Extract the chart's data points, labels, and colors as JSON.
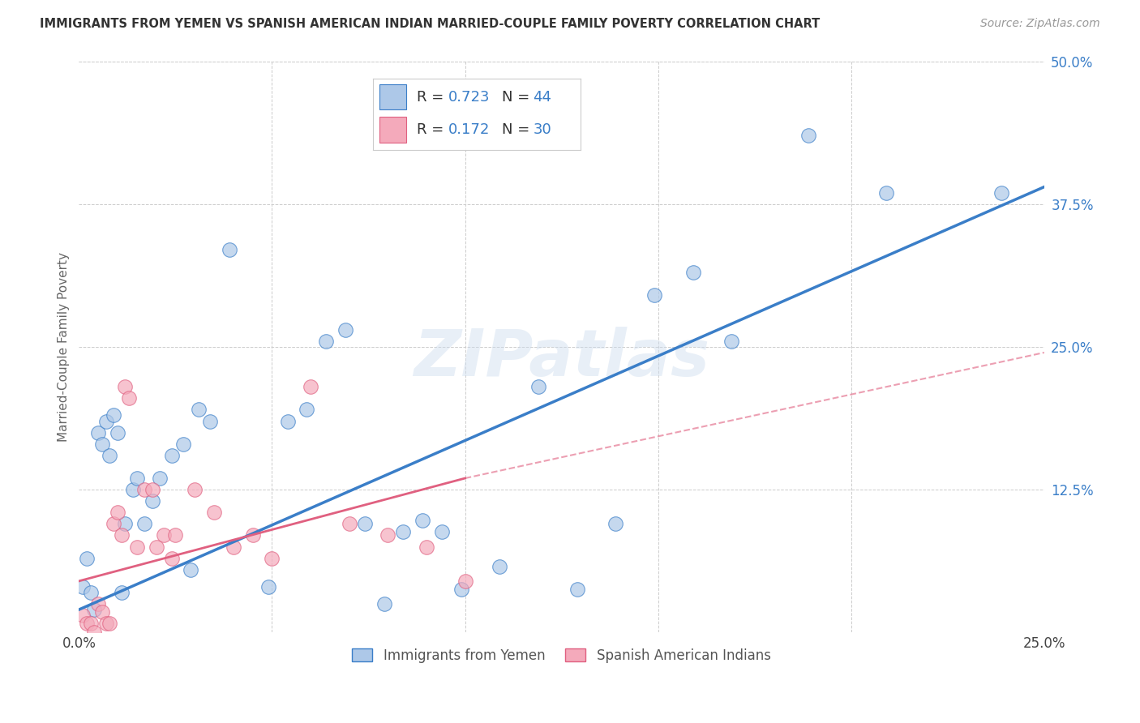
{
  "title": "IMMIGRANTS FROM YEMEN VS SPANISH AMERICAN INDIAN MARRIED-COUPLE FAMILY POVERTY CORRELATION CHART",
  "source": "Source: ZipAtlas.com",
  "ylabel": "Married-Couple Family Poverty",
  "xlim": [
    0.0,
    0.25
  ],
  "ylim": [
    0.0,
    0.5
  ],
  "ytick_labels": [
    "12.5%",
    "25.0%",
    "37.5%",
    "50.0%"
  ],
  "ytick_values": [
    0.125,
    0.25,
    0.375,
    0.5
  ],
  "xtick_values": [
    0.0,
    0.25
  ],
  "xtick_labels": [
    "0.0%",
    "25.0%"
  ],
  "r_blue": 0.723,
  "n_blue": 44,
  "r_pink": 0.172,
  "n_pink": 30,
  "legend_label_blue": "Immigrants from Yemen",
  "legend_label_pink": "Spanish American Indians",
  "blue_color": "#adc8e8",
  "pink_color": "#f4aabb",
  "blue_line_color": "#3a7ec8",
  "pink_line_color": "#e06080",
  "blue_scatter": [
    [
      0.001,
      0.04
    ],
    [
      0.002,
      0.065
    ],
    [
      0.003,
      0.035
    ],
    [
      0.004,
      0.02
    ],
    [
      0.005,
      0.175
    ],
    [
      0.006,
      0.165
    ],
    [
      0.007,
      0.185
    ],
    [
      0.008,
      0.155
    ],
    [
      0.009,
      0.19
    ],
    [
      0.01,
      0.175
    ],
    [
      0.011,
      0.035
    ],
    [
      0.012,
      0.095
    ],
    [
      0.014,
      0.125
    ],
    [
      0.015,
      0.135
    ],
    [
      0.017,
      0.095
    ],
    [
      0.019,
      0.115
    ],
    [
      0.021,
      0.135
    ],
    [
      0.024,
      0.155
    ],
    [
      0.027,
      0.165
    ],
    [
      0.029,
      0.055
    ],
    [
      0.031,
      0.195
    ],
    [
      0.034,
      0.185
    ],
    [
      0.039,
      0.335
    ],
    [
      0.049,
      0.04
    ],
    [
      0.054,
      0.185
    ],
    [
      0.059,
      0.195
    ],
    [
      0.064,
      0.255
    ],
    [
      0.069,
      0.265
    ],
    [
      0.074,
      0.095
    ],
    [
      0.084,
      0.088
    ],
    [
      0.089,
      0.098
    ],
    [
      0.094,
      0.088
    ],
    [
      0.099,
      0.038
    ],
    [
      0.109,
      0.058
    ],
    [
      0.119,
      0.215
    ],
    [
      0.129,
      0.038
    ],
    [
      0.139,
      0.095
    ],
    [
      0.149,
      0.295
    ],
    [
      0.159,
      0.315
    ],
    [
      0.169,
      0.255
    ],
    [
      0.189,
      0.435
    ],
    [
      0.209,
      0.385
    ],
    [
      0.239,
      0.385
    ],
    [
      0.079,
      0.025
    ]
  ],
  "pink_scatter": [
    [
      0.001,
      0.015
    ],
    [
      0.002,
      0.008
    ],
    [
      0.003,
      0.008
    ],
    [
      0.004,
      0.0
    ],
    [
      0.005,
      0.025
    ],
    [
      0.006,
      0.018
    ],
    [
      0.007,
      0.008
    ],
    [
      0.008,
      0.008
    ],
    [
      0.009,
      0.095
    ],
    [
      0.01,
      0.105
    ],
    [
      0.011,
      0.085
    ],
    [
      0.012,
      0.215
    ],
    [
      0.013,
      0.205
    ],
    [
      0.015,
      0.075
    ],
    [
      0.017,
      0.125
    ],
    [
      0.019,
      0.125
    ],
    [
      0.02,
      0.075
    ],
    [
      0.022,
      0.085
    ],
    [
      0.024,
      0.065
    ],
    [
      0.025,
      0.085
    ],
    [
      0.03,
      0.125
    ],
    [
      0.035,
      0.105
    ],
    [
      0.04,
      0.075
    ],
    [
      0.045,
      0.085
    ],
    [
      0.05,
      0.065
    ],
    [
      0.06,
      0.215
    ],
    [
      0.07,
      0.095
    ],
    [
      0.08,
      0.085
    ],
    [
      0.09,
      0.075
    ],
    [
      0.1,
      0.045
    ]
  ],
  "blue_line": [
    0.0,
    0.02,
    0.25,
    0.39
  ],
  "pink_line_solid": [
    0.0,
    0.045,
    0.1,
    0.135
  ],
  "pink_line_dashed": [
    0.1,
    0.135,
    0.25,
    0.245
  ],
  "watermark": "ZIPatlas",
  "background_color": "#ffffff",
  "grid_color": "#cccccc"
}
